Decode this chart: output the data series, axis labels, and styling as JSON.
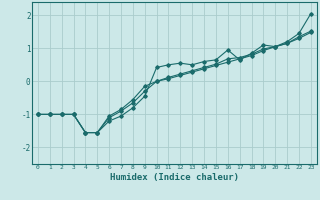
{
  "xlabel": "Humidex (Indice chaleur)",
  "ylabel": "",
  "background_color": "#cce8e8",
  "grid_color": "#aacccc",
  "line_color": "#1a6b6b",
  "xlim": [
    -0.5,
    23.5
  ],
  "ylim": [
    -2.5,
    2.4
  ],
  "xticks": [
    0,
    1,
    2,
    3,
    4,
    5,
    6,
    7,
    8,
    9,
    10,
    11,
    12,
    13,
    14,
    15,
    16,
    17,
    18,
    19,
    20,
    21,
    22,
    23
  ],
  "yticks": [
    -2,
    -1,
    0,
    1,
    2
  ],
  "series1_x": [
    0,
    1,
    2,
    3,
    4,
    5,
    6,
    7,
    8,
    9,
    10,
    11,
    12,
    13,
    14,
    15,
    16,
    17,
    18,
    19,
    20,
    21,
    22,
    23
  ],
  "series1_y": [
    -1.0,
    -1.0,
    -1.0,
    -1.0,
    -1.55,
    -1.55,
    -1.2,
    -1.05,
    -0.8,
    -0.45,
    0.42,
    0.5,
    0.55,
    0.5,
    0.6,
    0.65,
    0.95,
    0.65,
    0.85,
    1.1,
    1.05,
    1.2,
    1.45,
    2.05
  ],
  "series2_x": [
    0,
    1,
    2,
    3,
    4,
    5,
    6,
    7,
    8,
    9,
    10,
    11,
    12,
    13,
    14,
    15,
    16,
    17,
    18,
    19,
    20,
    21,
    22,
    23
  ],
  "series2_y": [
    -1.0,
    -1.0,
    -1.0,
    -1.0,
    -1.55,
    -1.55,
    -1.1,
    -0.9,
    -0.65,
    -0.3,
    0.0,
    0.12,
    0.22,
    0.32,
    0.42,
    0.52,
    0.68,
    0.72,
    0.82,
    0.98,
    1.05,
    1.15,
    1.35,
    1.52
  ],
  "series3_x": [
    0,
    1,
    2,
    3,
    4,
    5,
    6,
    7,
    8,
    9,
    10,
    11,
    12,
    13,
    14,
    15,
    16,
    17,
    18,
    19,
    20,
    21,
    22,
    23
  ],
  "series3_y": [
    -1.0,
    -1.0,
    -1.0,
    -1.0,
    -1.55,
    -1.55,
    -1.05,
    -0.85,
    -0.55,
    -0.15,
    0.0,
    0.08,
    0.18,
    0.28,
    0.38,
    0.48,
    0.58,
    0.68,
    0.78,
    0.93,
    1.05,
    1.15,
    1.3,
    1.48
  ]
}
